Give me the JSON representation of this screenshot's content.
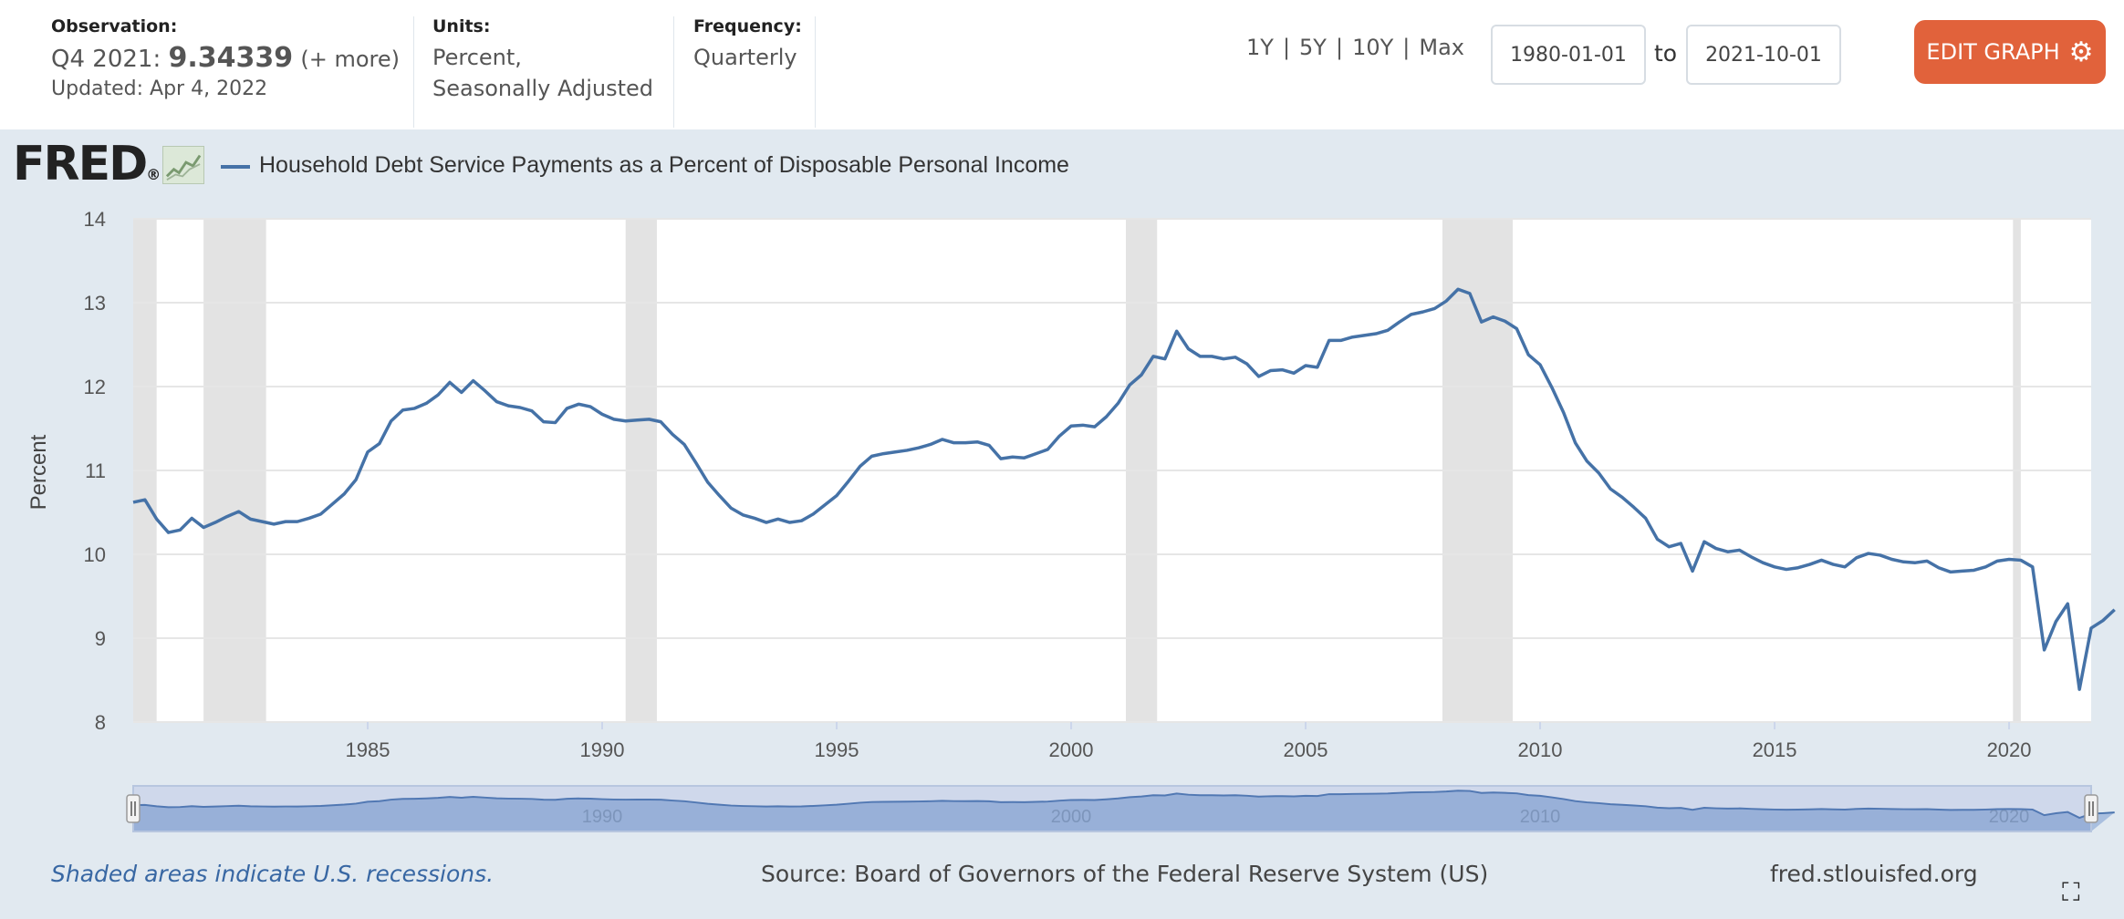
{
  "header": {
    "observation_label": "Observation:",
    "observation_period": "Q4 2021:",
    "observation_value": "9.34339",
    "observation_more": "(+ more)",
    "updated": "Updated: Apr 4, 2022",
    "units_label": "Units:",
    "units_line1": "Percent,",
    "units_line2": "Seasonally Adjusted",
    "frequency_label": "Frequency:",
    "frequency_value": "Quarterly",
    "range_1y": "1Y",
    "range_5y": "5Y",
    "range_10y": "10Y",
    "range_max": "Max",
    "date_from": "1980-01-01",
    "date_to": "2021-10-01",
    "to_label": "to",
    "edit_button": "EDIT GRAPH",
    "gear_icon": "gear-icon"
  },
  "logo": {
    "text": "FRED",
    "mark": "®"
  },
  "footer": {
    "recession_note": "Shaded areas indicate U.S. recessions.",
    "source": "Source: Board of Governors of the Federal Reserve System (US)",
    "site": "fred.stlouisfed.org",
    "fullscreen_icon": "expand-icon"
  },
  "colors": {
    "line": "#4572a7",
    "recession": "#e3e3e3",
    "accent": "#e1623b",
    "navigator_fill": "#a9bfdf"
  },
  "chart_data": {
    "type": "line",
    "title": "Household Debt Service Payments as a Percent of Disposable Personal Income",
    "ylabel": "Percent",
    "xlabel": "",
    "xlim": [
      "1980-01-01",
      "2021-10-01"
    ],
    "ylim": [
      8,
      14
    ],
    "yticks": [
      "8",
      "9",
      "10",
      "11",
      "12",
      "13",
      "14"
    ],
    "xticks": [
      "1985",
      "1990",
      "1995",
      "2000",
      "2005",
      "2010",
      "2015",
      "2020"
    ],
    "navigator_labels": [
      "1990",
      "2000",
      "2010",
      "2020"
    ],
    "grid": true,
    "recessions": [
      [
        "1980-01-01",
        "1980-07-01"
      ],
      [
        "1981-07-01",
        "1982-11-01"
      ],
      [
        "1990-07-01",
        "1991-03-01"
      ],
      [
        "2001-03-01",
        "2001-11-01"
      ],
      [
        "2007-12-01",
        "2009-06-01"
      ],
      [
        "2020-02-01",
        "2020-04-01"
      ]
    ],
    "series": [
      {
        "name": "Household Debt Service Payments as a Percent of Disposable Personal Income",
        "start": "1980 Q1",
        "frequency": "quarterly",
        "values": [
          10.62,
          10.65,
          10.42,
          10.26,
          10.29,
          10.43,
          10.32,
          10.38,
          10.45,
          10.51,
          10.42,
          10.39,
          10.36,
          10.39,
          10.39,
          10.43,
          10.48,
          10.6,
          10.72,
          10.89,
          11.22,
          11.32,
          11.59,
          11.72,
          11.74,
          11.8,
          11.9,
          12.05,
          11.93,
          12.07,
          11.95,
          11.82,
          11.77,
          11.75,
          11.71,
          11.58,
          11.57,
          11.74,
          11.79,
          11.76,
          11.67,
          11.61,
          11.59,
          11.6,
          11.61,
          11.58,
          11.43,
          11.31,
          11.09,
          10.86,
          10.7,
          10.55,
          10.47,
          10.43,
          10.38,
          10.42,
          10.38,
          10.4,
          10.48,
          10.59,
          10.7,
          10.87,
          11.05,
          11.17,
          11.2,
          11.22,
          11.24,
          11.27,
          11.31,
          11.37,
          11.33,
          11.33,
          11.34,
          11.3,
          11.14,
          11.16,
          11.15,
          11.2,
          11.25,
          11.41,
          11.53,
          11.54,
          11.52,
          11.64,
          11.8,
          12.02,
          12.14,
          12.36,
          12.33,
          12.66,
          12.45,
          12.36,
          12.36,
          12.33,
          12.35,
          12.27,
          12.12,
          12.19,
          12.2,
          12.16,
          12.25,
          12.23,
          12.55,
          12.55,
          12.59,
          12.61,
          12.63,
          12.67,
          12.77,
          12.86,
          12.89,
          12.93,
          13.02,
          13.16,
          13.11,
          12.77,
          12.83,
          12.78,
          12.69,
          12.38,
          12.26,
          11.99,
          11.69,
          11.33,
          11.11,
          10.97,
          10.78,
          10.68,
          10.56,
          10.43,
          10.18,
          10.09,
          10.13,
          9.8,
          10.15,
          10.07,
          10.03,
          10.05,
          9.97,
          9.9,
          9.85,
          9.82,
          9.84,
          9.88,
          9.93,
          9.88,
          9.85,
          9.96,
          10.01,
          9.99,
          9.94,
          9.91,
          9.9,
          9.92,
          9.84,
          9.79,
          9.8,
          9.81,
          9.85,
          9.92,
          9.94,
          9.93,
          9.85,
          8.86,
          9.2,
          9.41,
          8.39,
          9.12,
          9.21,
          9.34
        ]
      }
    ]
  }
}
